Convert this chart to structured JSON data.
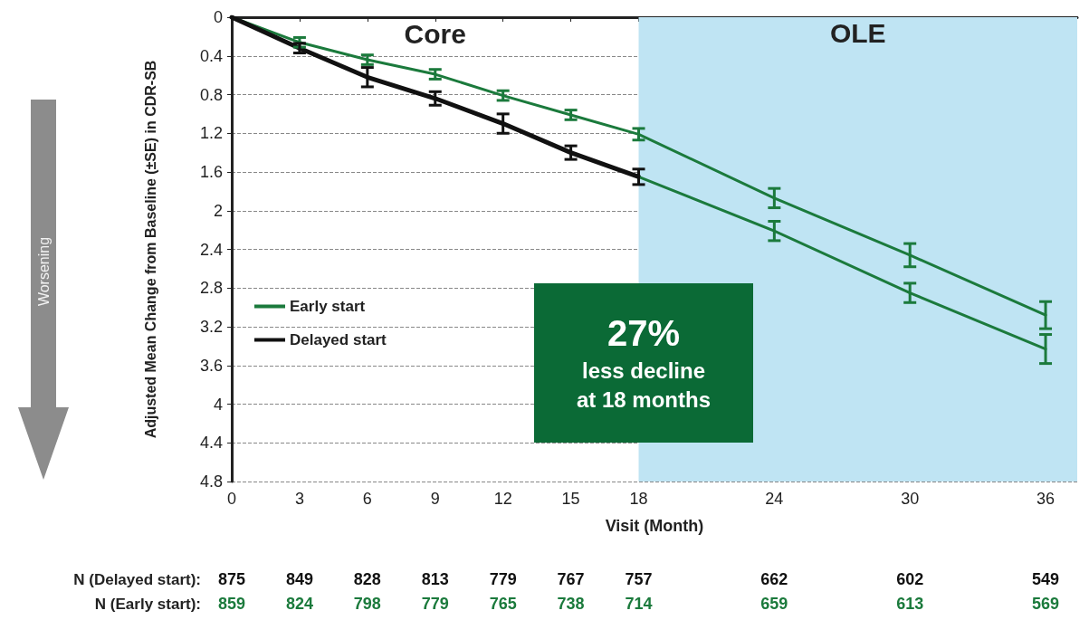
{
  "chart_data": {
    "type": "line",
    "xlabel": "Visit (Month)",
    "ylabel": "Adjusted Mean Change from Baseline (±SE) in CDR-SB",
    "xlim": [
      0,
      37.4
    ],
    "xticks": [
      0,
      3,
      6,
      9,
      12,
      15,
      18,
      24,
      30,
      36
    ],
    "ylim": [
      4.8,
      0
    ],
    "yticks": [
      0,
      0.4,
      0.8,
      1.2,
      1.6,
      2,
      2.4,
      2.8,
      3.2,
      3.6,
      4,
      4.4,
      4.8
    ],
    "grid": "y",
    "legend": "left",
    "marker": "none",
    "line_style": "solid",
    "series": [
      {
        "name": "Early start",
        "color": "#1b7a3c",
        "x": [
          0,
          3,
          6,
          9,
          12,
          15,
          18,
          24,
          30,
          36
        ],
        "values": [
          0,
          0.26,
          0.44,
          0.59,
          0.81,
          1.01,
          1.21,
          1.87,
          2.46,
          3.08
        ],
        "errors": [
          null,
          0.05,
          0.05,
          0.05,
          0.05,
          0.05,
          0.06,
          0.1,
          0.12,
          0.14
        ]
      },
      {
        "name": "Delayed start",
        "color": "#111111",
        "x": [
          0,
          3,
          6,
          9,
          12,
          15,
          18
        ],
        "values": [
          0,
          0.32,
          0.62,
          0.84,
          1.1,
          1.4,
          1.65
        ],
        "errors": [
          null,
          0.05,
          0.1,
          0.07,
          0.1,
          0.07,
          0.08
        ]
      },
      {
        "color": "#1b7a3c",
        "x": [
          18,
          24,
          30,
          36
        ],
        "values": [
          1.65,
          2.21,
          2.85,
          3.43
        ],
        "errors": [
          null,
          0.1,
          0.1,
          0.15
        ]
      }
    ],
    "bands": [
      {
        "axis": "x",
        "from": 18,
        "to": 37.4,
        "label": "OLE",
        "color": "#bfe4f3"
      }
    ],
    "annotations": [
      "Core",
      "Worsening",
      "27%\nless decline\nat 18 months",
      "N (Delayed start):",
      "875",
      "849",
      "828",
      "813",
      "779",
      "767",
      "757",
      "662",
      "602",
      "549",
      "N (Early start):",
      "859",
      "824",
      "798",
      "779",
      "765",
      "738",
      "714",
      "659",
      "613",
      "569"
    ]
  }
}
